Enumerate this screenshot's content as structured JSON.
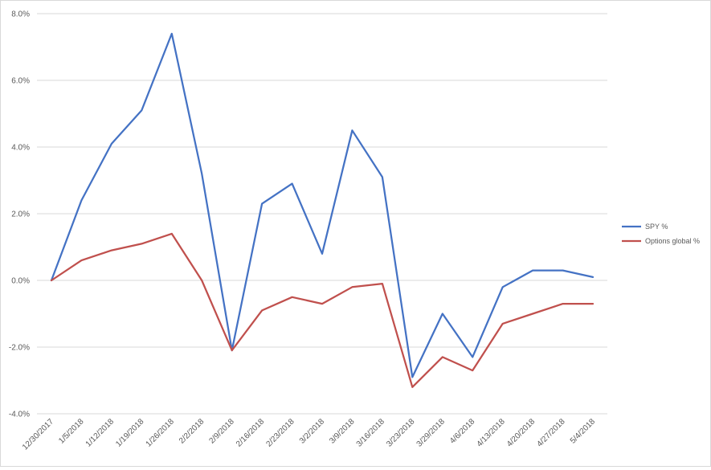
{
  "chart_data": {
    "type": "line",
    "title": "",
    "xlabel": "",
    "ylabel": "",
    "ylim": [
      -4,
      8
    ],
    "y_ticks": [
      "-4.0%",
      "-2.0%",
      "0.0%",
      "2.0%",
      "4.0%",
      "6.0%",
      "8.0%"
    ],
    "grid": "horizontal",
    "legend_position": "right",
    "categories": [
      "12/30/2017",
      "1/5/2018",
      "1/12/2018",
      "1/19/2018",
      "1/26/2018",
      "2/2/2018",
      "2/9/2018",
      "2/16/2018",
      "2/23/2018",
      "3/2/2018",
      "3/9/2018",
      "3/16/2018",
      "3/23/2018",
      "3/29/2018",
      "4/6/2018",
      "4/13/2018",
      "4/20/2018",
      "4/27/2018",
      "5/4/2018"
    ],
    "series": [
      {
        "name": "SPY %",
        "color": "#4472C4",
        "values": [
          0.0,
          2.4,
          4.1,
          5.1,
          7.4,
          3.2,
          -2.1,
          2.3,
          2.9,
          0.8,
          4.5,
          3.1,
          -2.9,
          -1.0,
          -2.3,
          -0.2,
          0.3,
          0.3,
          0.1
        ]
      },
      {
        "name": "Options global %",
        "color": "#C0504D",
        "values": [
          0.0,
          0.6,
          0.9,
          1.1,
          1.4,
          0.0,
          -2.1,
          -0.9,
          -0.5,
          -0.7,
          -0.2,
          -0.1,
          -3.2,
          -2.3,
          -2.7,
          -1.3,
          -1.0,
          -0.7,
          -0.7
        ]
      }
    ]
  }
}
